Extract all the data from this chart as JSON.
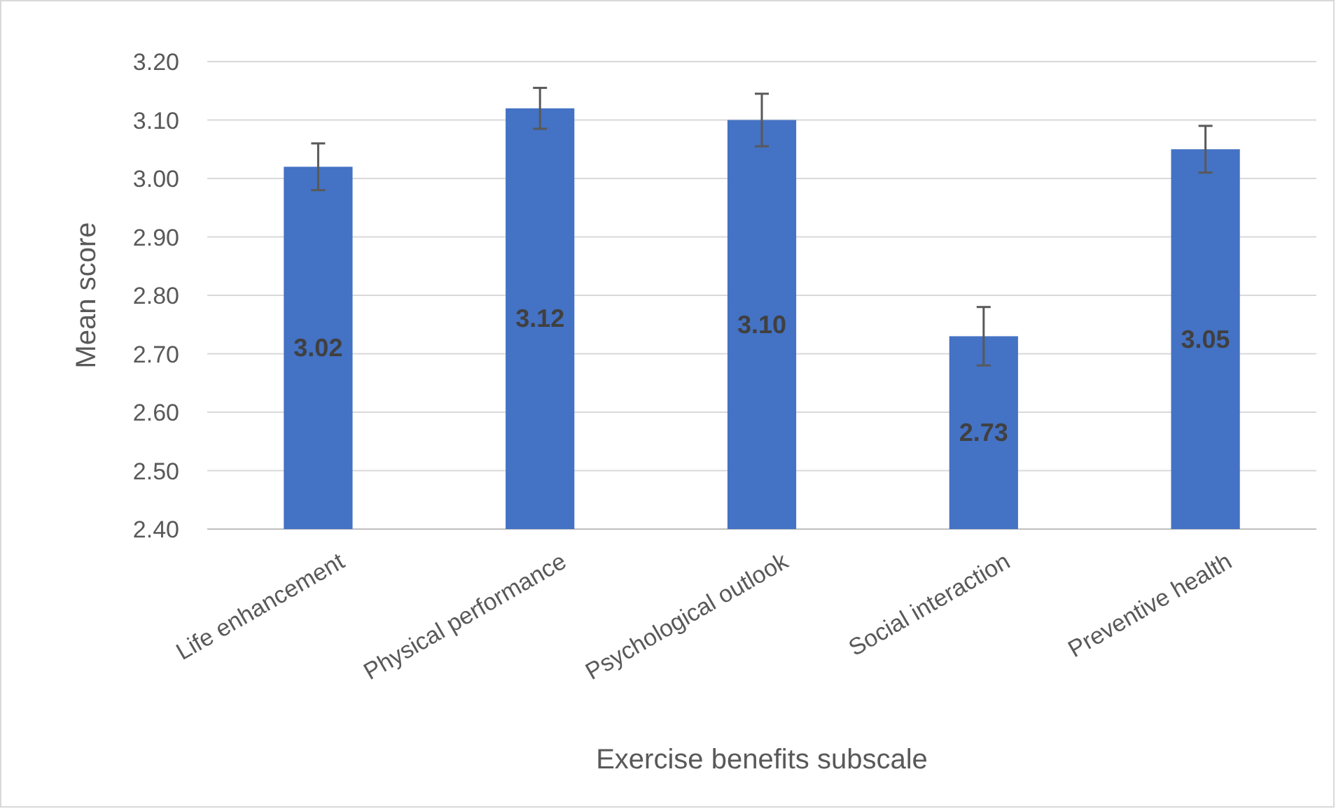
{
  "chart_data": {
    "type": "bar",
    "xlabel": "Exercise benefits subscale",
    "ylabel": "Mean score",
    "categories": [
      "Life enhancement",
      "Physical performance",
      "Psychological outlook",
      "Social interaction",
      "Preventive health"
    ],
    "values": [
      3.02,
      3.12,
      3.1,
      2.73,
      3.05
    ],
    "value_labels": [
      "3.02",
      "3.12",
      "3.10",
      "2.73",
      "3.05"
    ],
    "errors": [
      0.04,
      0.035,
      0.045,
      0.05,
      0.04
    ],
    "color": "#4472c4",
    "ylim": [
      2.4,
      3.2
    ],
    "yticks": [
      {
        "value": 2.4,
        "label": "2.40"
      },
      {
        "value": 2.5,
        "label": "2.50"
      },
      {
        "value": 2.6,
        "label": "2.60"
      },
      {
        "value": 2.7,
        "label": "2.70"
      },
      {
        "value": 2.8,
        "label": "2.80"
      },
      {
        "value": 2.9,
        "label": "2.90"
      },
      {
        "value": 3.0,
        "label": "3.00"
      },
      {
        "value": 3.1,
        "label": "3.10"
      },
      {
        "value": 3.2,
        "label": "3.20"
      }
    ],
    "grid": "y"
  }
}
